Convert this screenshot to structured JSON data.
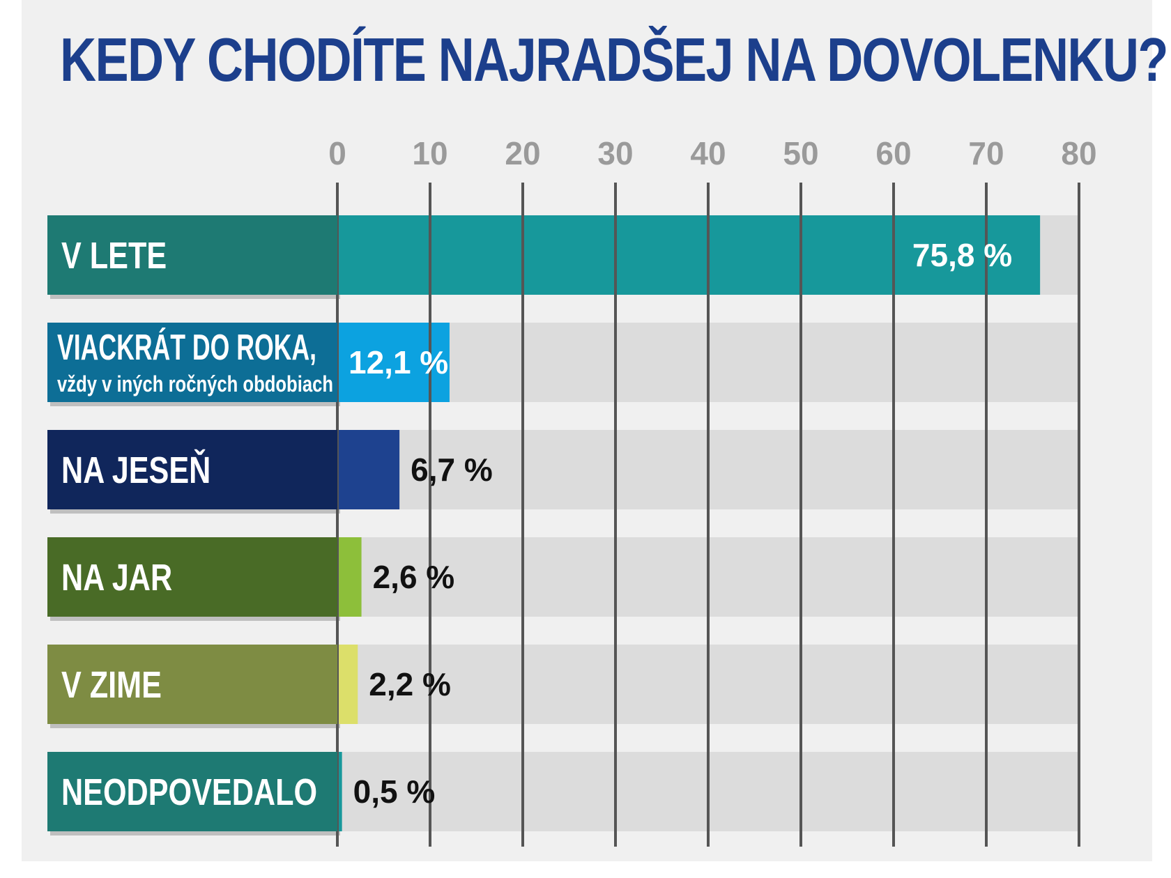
{
  "chart_data": {
    "type": "bar",
    "orientation": "horizontal",
    "title": "KEDY CHODÍTE NAJRADŠEJ NA DOVOLENKU?",
    "xlim": [
      0,
      80
    ],
    "ticks": [
      "0",
      "10",
      "20",
      "30",
      "40",
      "50",
      "60",
      "70",
      "80"
    ],
    "tick_values": [
      0,
      10,
      20,
      30,
      40,
      50,
      60,
      70,
      80
    ],
    "categories": [
      {
        "label": "V LETE",
        "sublabel": "",
        "value": 75.8,
        "value_label": "75,8  %",
        "label_color": "#1e7a73",
        "bar_color": "#17989b",
        "value_text_color": "#ffffff",
        "value_inside": true
      },
      {
        "label": "VIACKRÁT DO ROKA,",
        "sublabel": "vždy v iných ročných obdobiach",
        "value": 12.1,
        "value_label": "12,1 %",
        "label_color": "#0d6e96",
        "bar_color": "#0ca2e0",
        "value_text_color": "#ffffff",
        "value_inside": true
      },
      {
        "label": "NA JESEŇ",
        "sublabel": "",
        "value": 6.7,
        "value_label": "6,7 %",
        "label_color": "#10265b",
        "bar_color": "#1e428f",
        "value_text_color": "#111111",
        "value_inside": false
      },
      {
        "label": "NA JAR",
        "sublabel": "",
        "value": 2.6,
        "value_label": "2,6 %",
        "label_color": "#496b26",
        "bar_color": "#8dbf3a",
        "value_text_color": "#111111",
        "value_inside": false
      },
      {
        "label": "V ZIME",
        "sublabel": "",
        "value": 2.2,
        "value_label": "2,2 %",
        "label_color": "#7e8c43",
        "bar_color": "#dcdf6a",
        "value_text_color": "#111111",
        "value_inside": false
      },
      {
        "label": "NEODPOVEDALO",
        "sublabel": "",
        "value": 0.5,
        "value_label": "0,5 %",
        "label_color": "#1e7a73",
        "bar_color": "#17989b",
        "value_text_color": "#111111",
        "value_inside": false
      }
    ],
    "colors": {
      "title": "#1c3f8c",
      "track": "#dcdcdc",
      "grid": "#555555",
      "tick_text": "#9a9a9a"
    }
  }
}
